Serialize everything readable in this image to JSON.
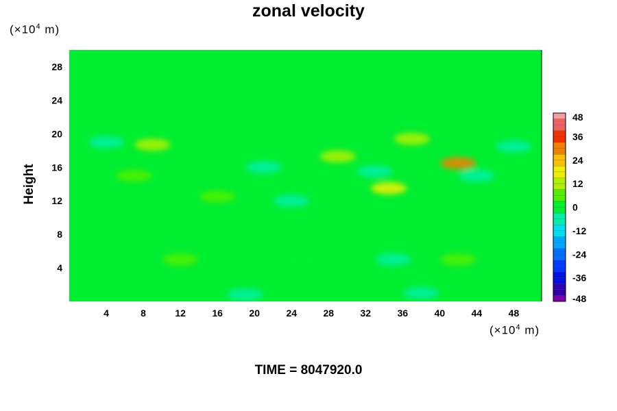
{
  "chart_data": {
    "type": "heatmap",
    "title": "zonal velocity",
    "ylabel": "Height",
    "x_unit_prefix": "(×10",
    "x_unit_exp": "4",
    "x_unit_suffix": " m)",
    "y_unit_prefix": "(×10",
    "y_unit_exp": "4",
    "y_unit_suffix": " m)",
    "x_ticks": [
      4,
      8,
      12,
      16,
      20,
      24,
      28,
      32,
      36,
      40,
      44,
      48
    ],
    "y_ticks": [
      4,
      8,
      12,
      16,
      20,
      24,
      28
    ],
    "xlim": [
      0,
      51
    ],
    "ylim": [
      0,
      30
    ],
    "colorbar_ticks": [
      48,
      36,
      24,
      12,
      0,
      -12,
      -24,
      -36,
      -48
    ],
    "colorbar_range": [
      -48,
      48
    ],
    "features": [
      {
        "x": 42,
        "y": 16.5,
        "value": 30
      },
      {
        "x": 34.5,
        "y": 13.5,
        "value": 18
      },
      {
        "x": 9,
        "y": 18.7,
        "value": 14
      },
      {
        "x": 37,
        "y": 19.4,
        "value": 14
      },
      {
        "x": 29,
        "y": 17.3,
        "value": 10
      },
      {
        "x": 16,
        "y": 12.5,
        "value": 8
      },
      {
        "x": 7,
        "y": 15,
        "value": 9
      },
      {
        "x": 44,
        "y": 15,
        "value": -8
      },
      {
        "x": 21,
        "y": 16,
        "value": -8
      },
      {
        "x": 33,
        "y": 15.5,
        "value": -6
      },
      {
        "x": 4,
        "y": 19,
        "value": -6
      },
      {
        "x": 24,
        "y": 12,
        "value": -6
      },
      {
        "x": 48,
        "y": 18.5,
        "value": -5
      },
      {
        "x": 12,
        "y": 5,
        "value": 4
      },
      {
        "x": 42,
        "y": 5,
        "value": 5
      },
      {
        "x": 25,
        "y": 5,
        "value": 3
      },
      {
        "x": 35,
        "y": 5,
        "value": -3
      },
      {
        "x": 19,
        "y": 0.8,
        "value": -4
      },
      {
        "x": 38,
        "y": 1,
        "value": -4
      }
    ]
  },
  "time_label": "TIME = 8047920.0"
}
